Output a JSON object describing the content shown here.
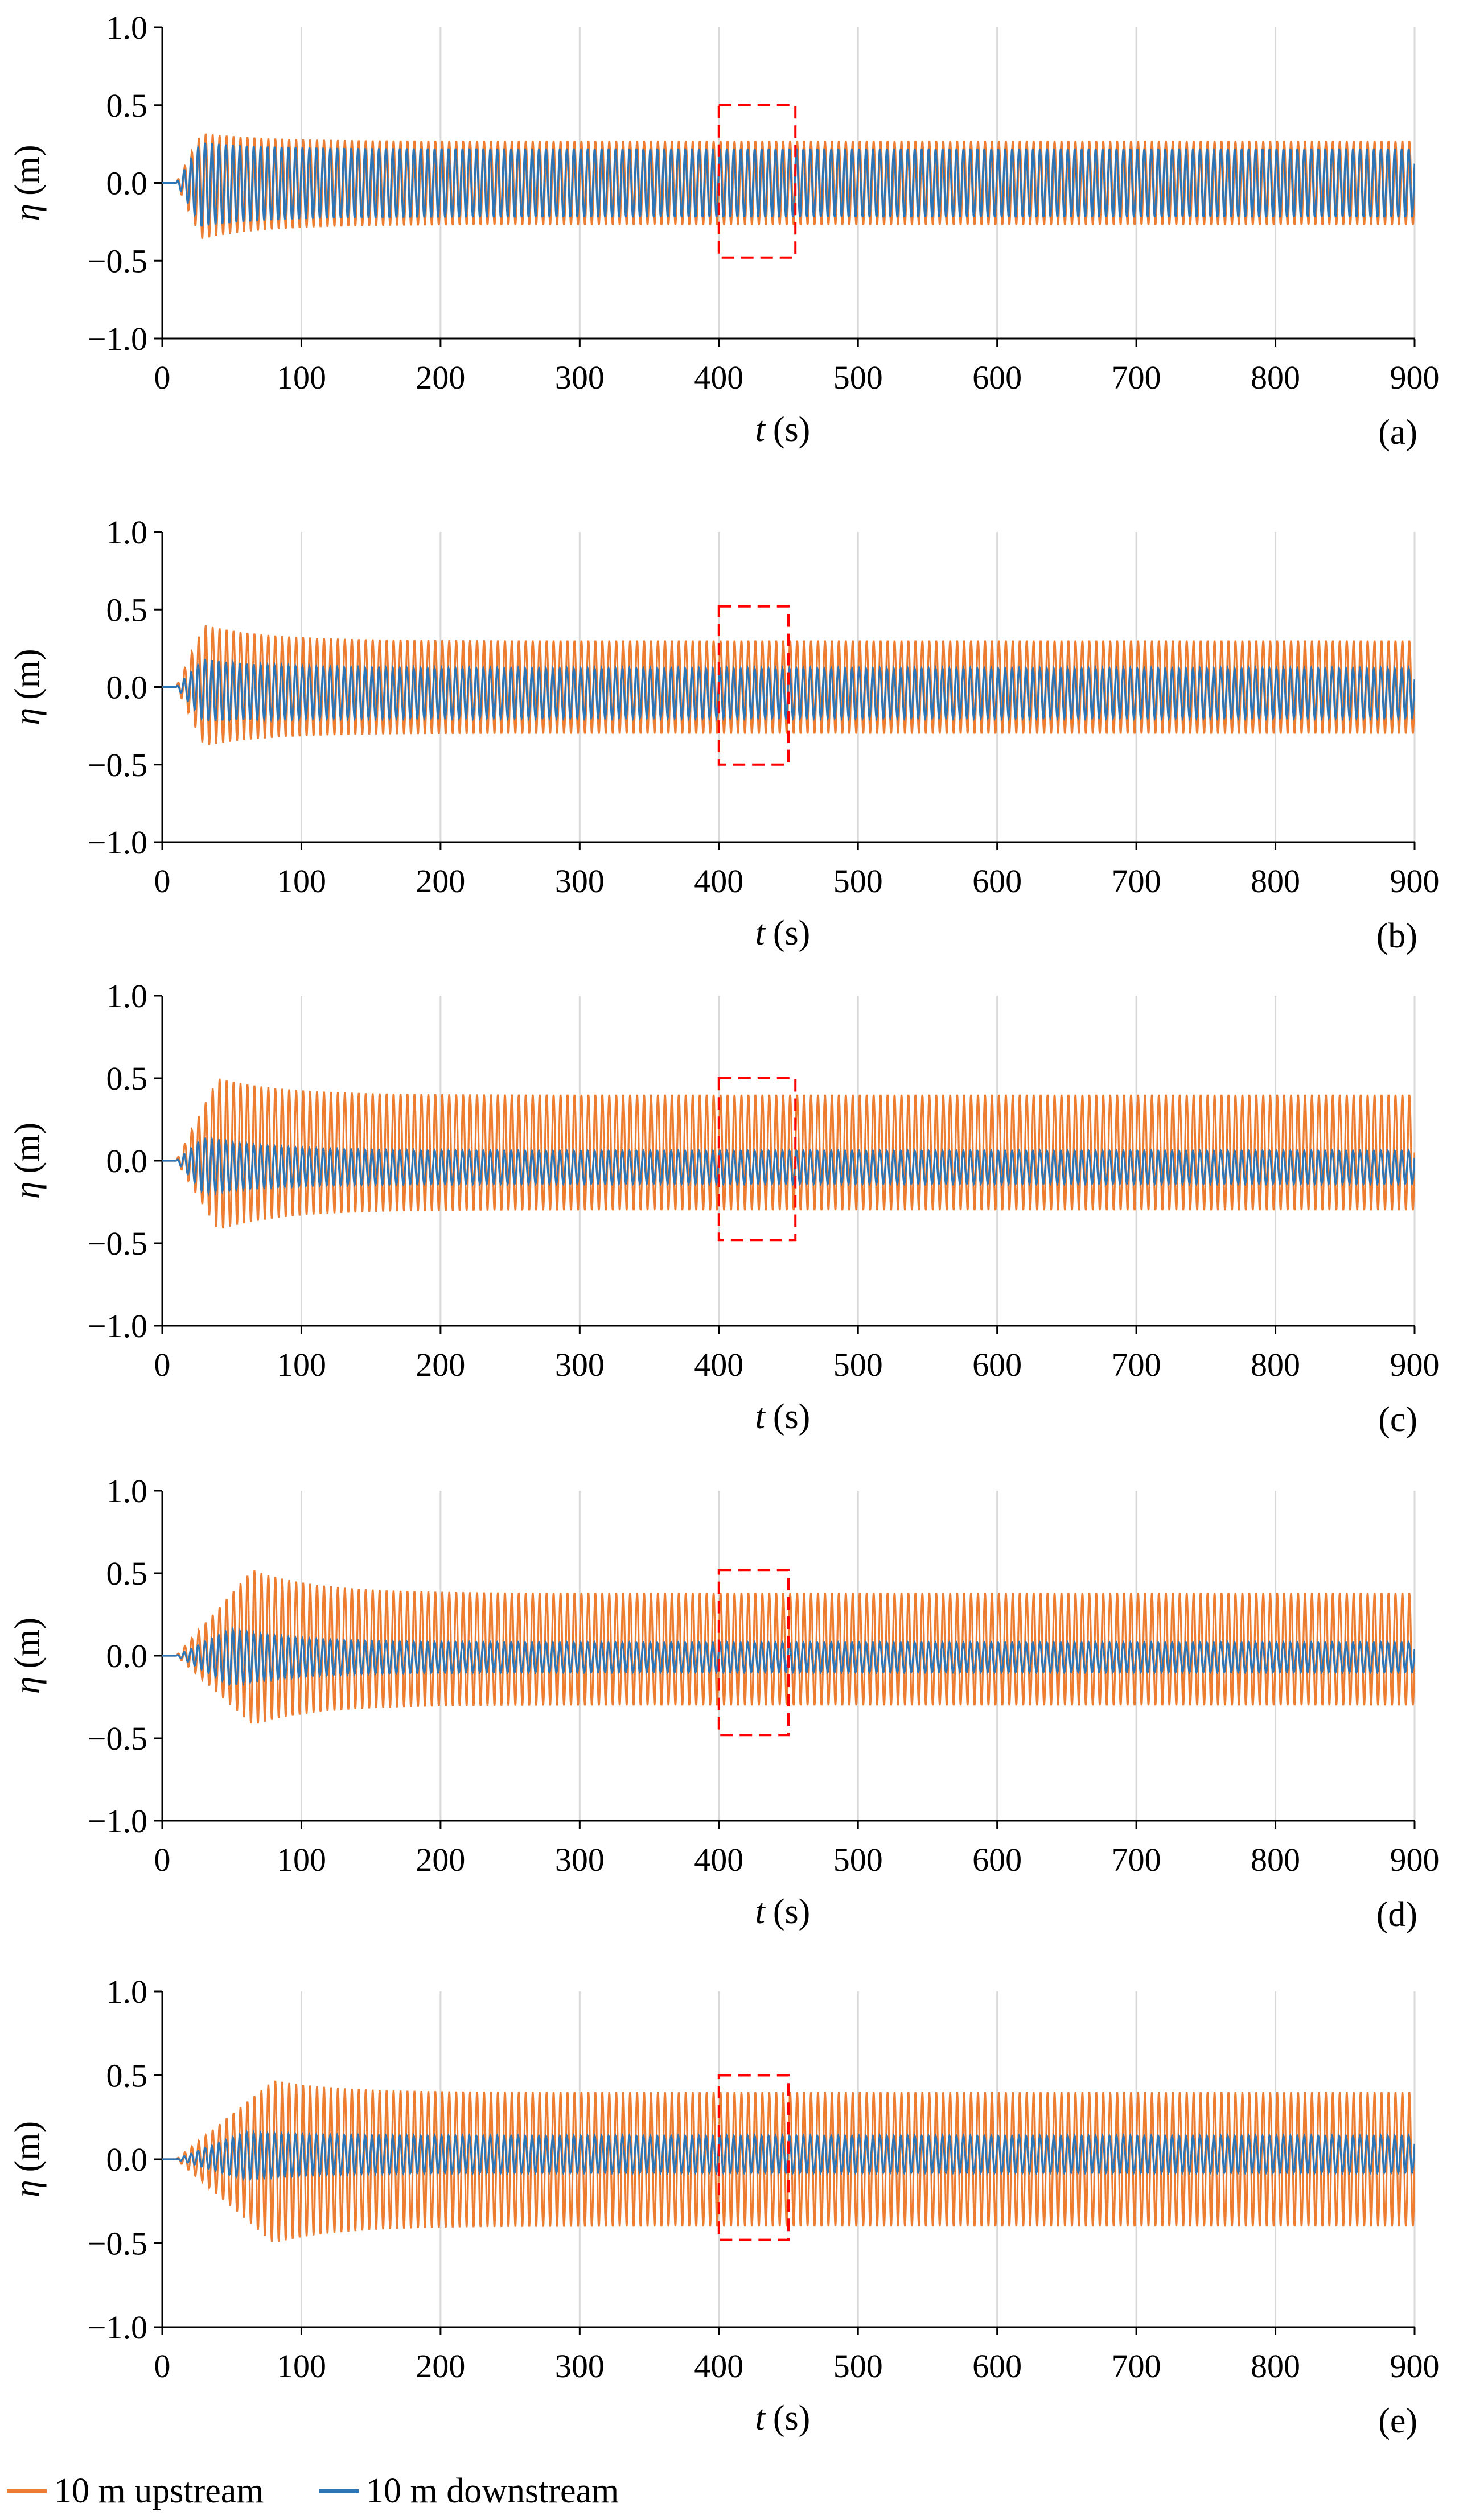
{
  "chart_data": [
    {
      "type": "line",
      "panel_label": "(a)",
      "xlabel_var": "t",
      "xlabel_unit": "(s)",
      "ylabel_var": "η",
      "ylabel_unit": "(m)",
      "xlim": [
        0,
        900
      ],
      "ylim": [
        -1.0,
        1.0
      ],
      "xticks": [
        "0",
        "100",
        "200",
        "300",
        "400",
        "500",
        "600",
        "700",
        "800",
        "900"
      ],
      "yticks": [
        "1.0",
        "0.5",
        "0.0",
        "−0.5",
        "−1.0"
      ],
      "grid": "vertical",
      "series": [
        {
          "name": "10 m upstream",
          "color": "#ED7D31",
          "period_s": 5.0,
          "onset_s": 10,
          "peak_t_s": 28,
          "peak_max": 0.32,
          "peak_min": -0.36,
          "steady_max": 0.27,
          "steady_min": -0.27
        },
        {
          "name": "10 m downstream",
          "color": "#2E75B6",
          "period_s": 5.0,
          "onset_s": 10,
          "peak_t_s": 28,
          "peak_max": 0.26,
          "peak_min": -0.28,
          "steady_max": 0.22,
          "steady_min": -0.22
        }
      ],
      "highlight_box": {
        "x": [
          400,
          455
        ],
        "y": [
          -0.48,
          0.5
        ],
        "color": "#FF0000",
        "style": "dashed"
      }
    },
    {
      "type": "line",
      "panel_label": "(b)",
      "xlabel_var": "t",
      "xlabel_unit": "(s)",
      "ylabel_var": "η",
      "ylabel_unit": "(m)",
      "xlim": [
        0,
        900
      ],
      "ylim": [
        -1.0,
        1.0
      ],
      "xticks": [
        "0",
        "100",
        "200",
        "300",
        "400",
        "500",
        "600",
        "700",
        "800",
        "900"
      ],
      "yticks": [
        "1.0",
        "0.5",
        "0.0",
        "−0.5",
        "−1.0"
      ],
      "grid": "vertical",
      "series": [
        {
          "name": "10 m upstream",
          "color": "#ED7D31",
          "period_s": 5.0,
          "onset_s": 10,
          "peak_t_s": 30,
          "peak_max": 0.4,
          "peak_min": -0.38,
          "steady_max": 0.3,
          "steady_min": -0.3
        },
        {
          "name": "10 m downstream",
          "color": "#2E75B6",
          "period_s": 5.0,
          "onset_s": 10,
          "peak_t_s": 30,
          "peak_max": 0.18,
          "peak_min": -0.22,
          "steady_max": 0.12,
          "steady_min": -0.2
        }
      ],
      "highlight_box": {
        "x": [
          400,
          450
        ],
        "y": [
          -0.5,
          0.52
        ],
        "color": "#FF0000",
        "style": "dashed"
      }
    },
    {
      "type": "line",
      "panel_label": "(c)",
      "xlabel_var": "t",
      "xlabel_unit": "(s)",
      "ylabel_var": "η",
      "ylabel_unit": "(m)",
      "xlim": [
        0,
        900
      ],
      "ylim": [
        -1.0,
        1.0
      ],
      "xticks": [
        "0",
        "100",
        "200",
        "300",
        "400",
        "500",
        "600",
        "700",
        "800",
        "900"
      ],
      "yticks": [
        "1.0",
        "0.5",
        "0.0",
        "−0.5",
        "−1.0"
      ],
      "grid": "vertical",
      "series": [
        {
          "name": "10 m upstream",
          "color": "#ED7D31",
          "period_s": 5.0,
          "onset_s": 10,
          "peak_t_s": 40,
          "peak_max": 0.5,
          "peak_min": -0.42,
          "steady_max": 0.4,
          "steady_min": -0.3
        },
        {
          "name": "10 m downstream",
          "color": "#2E75B6",
          "period_s": 5.0,
          "onset_s": 10,
          "peak_t_s": 30,
          "peak_max": 0.14,
          "peak_min": -0.2,
          "steady_max": 0.06,
          "steady_min": -0.14
        }
      ],
      "highlight_box": {
        "x": [
          400,
          455
        ],
        "y": [
          -0.48,
          0.5
        ],
        "color": "#FF0000",
        "style": "dashed"
      }
    },
    {
      "type": "line",
      "panel_label": "(d)",
      "xlabel_var": "t",
      "xlabel_unit": "(s)",
      "ylabel_var": "η",
      "ylabel_unit": "(m)",
      "xlim": [
        0,
        900
      ],
      "ylim": [
        -1.0,
        1.0
      ],
      "xticks": [
        "0",
        "100",
        "200",
        "300",
        "400",
        "500",
        "600",
        "700",
        "800",
        "900"
      ],
      "yticks": [
        "1.0",
        "0.5",
        "0.0",
        "−0.5",
        "−1.0"
      ],
      "grid": "vertical",
      "series": [
        {
          "name": "10 m upstream",
          "color": "#ED7D31",
          "period_s": 5.0,
          "onset_s": 10,
          "peak_t_s": 65,
          "peak_max": 0.52,
          "peak_min": -0.42,
          "steady_max": 0.38,
          "steady_min": -0.3
        },
        {
          "name": "10 m downstream",
          "color": "#2E75B6",
          "period_s": 5.0,
          "onset_s": 10,
          "peak_t_s": 50,
          "peak_max": 0.16,
          "peak_min": -0.18,
          "steady_max": 0.08,
          "steady_min": -0.1
        }
      ],
      "highlight_box": {
        "x": [
          400,
          450
        ],
        "y": [
          -0.48,
          0.52
        ],
        "color": "#FF0000",
        "style": "dashed"
      }
    },
    {
      "type": "line",
      "panel_label": "(e)",
      "xlabel_var": "t",
      "xlabel_unit": "(s)",
      "ylabel_var": "η",
      "ylabel_unit": "(m)",
      "xlim": [
        0,
        900
      ],
      "ylim": [
        -1.0,
        1.0
      ],
      "xticks": [
        "0",
        "100",
        "200",
        "300",
        "400",
        "500",
        "600",
        "700",
        "800",
        "900"
      ],
      "yticks": [
        "1.0",
        "0.5",
        "0.0",
        "−0.5",
        "−1.0"
      ],
      "grid": "vertical",
      "series": [
        {
          "name": "10 m upstream",
          "color": "#ED7D31",
          "period_s": 5.0,
          "onset_s": 10,
          "peak_t_s": 80,
          "peak_max": 0.47,
          "peak_min": -0.5,
          "steady_max": 0.4,
          "steady_min": -0.4
        },
        {
          "name": "10 m downstream",
          "color": "#2E75B6",
          "period_s": 5.0,
          "onset_s": 10,
          "peak_t_s": 60,
          "peak_max": 0.16,
          "peak_min": -0.12,
          "steady_max": 0.14,
          "steady_min": -0.08
        }
      ],
      "highlight_box": {
        "x": [
          400,
          450
        ],
        "y": [
          -0.48,
          0.5
        ],
        "color": "#FF0000",
        "style": "dashed"
      }
    }
  ],
  "legend": {
    "placement": "bottom-left",
    "items": [
      {
        "label": "10 m upstream",
        "color": "#ED7D31"
      },
      {
        "label": "10 m downstream",
        "color": "#2E75B6"
      }
    ]
  }
}
